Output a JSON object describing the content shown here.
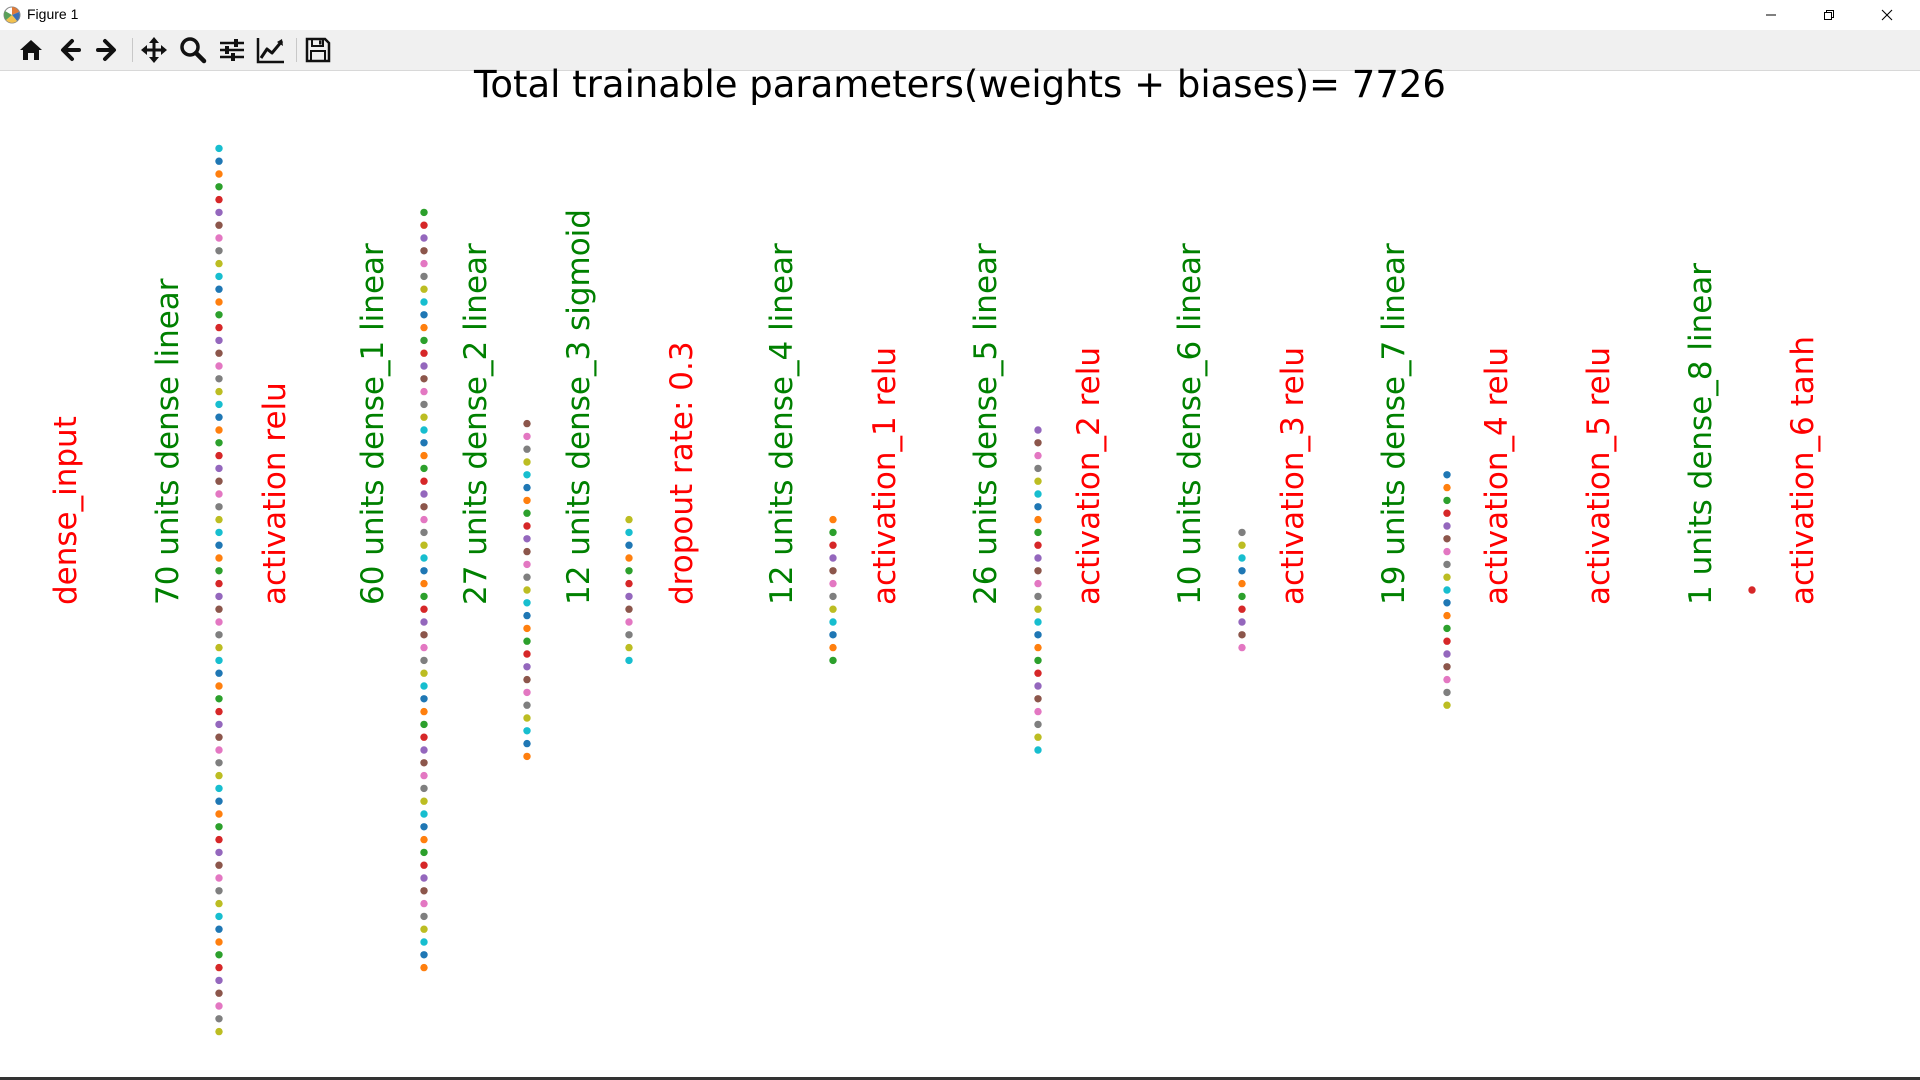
{
  "window": {
    "title": "Figure 1",
    "icon": "matplotlib-icon",
    "controls": [
      "minimize-icon",
      "restore-icon",
      "close-icon"
    ]
  },
  "toolbar": {
    "buttons": [
      {
        "name": "home-button",
        "icon": "home-icon",
        "tooltip": "Reset original view"
      },
      {
        "name": "back-button",
        "icon": "arrow-left-icon",
        "tooltip": "Back to previous view"
      },
      {
        "name": "forward-button",
        "icon": "arrow-right-icon",
        "tooltip": "Forward to next view"
      },
      {
        "name": "pan-button",
        "icon": "move-icon",
        "tooltip": "Pan axes"
      },
      {
        "name": "zoom-button",
        "icon": "magnifier-icon",
        "tooltip": "Zoom to rectangle"
      },
      {
        "name": "subplots-button",
        "icon": "sliders-icon",
        "tooltip": "Configure subplots"
      },
      {
        "name": "axes-button",
        "icon": "line-chart-icon",
        "tooltip": "Edit axis, curve and image parameters"
      },
      {
        "name": "save-button",
        "icon": "floppy-icon",
        "tooltip": "Save the figure"
      }
    ]
  },
  "figure": {
    "title": "Total trainable parameters(weights + biases)= 7726",
    "label_colors": {
      "dense": "#008000",
      "other": "#ff0000"
    },
    "node_palette": [
      "#1f77b4",
      "#ff7f0e",
      "#2ca02c",
      "#d62728",
      "#9467bd",
      "#8c564b",
      "#e377c2",
      "#7f7f7f",
      "#bcbd22",
      "#17becf"
    ],
    "labels": [
      {
        "text": "dense_input",
        "kind": "other"
      },
      {
        "text": "70 units  dense  linear",
        "kind": "dense"
      },
      {
        "text": "activation relu",
        "kind": "other"
      },
      {
        "text": "60 units  dense_1  linear",
        "kind": "dense"
      },
      {
        "text": "27 units  dense_2  linear",
        "kind": "dense"
      },
      {
        "text": "12 units  dense_3  sigmoid",
        "kind": "dense"
      },
      {
        "text": "dropout rate: 0.3",
        "kind": "other"
      },
      {
        "text": "12 units  dense_4  linear",
        "kind": "dense"
      },
      {
        "text": "activation_1 relu",
        "kind": "other"
      },
      {
        "text": "26 units  dense_5  linear",
        "kind": "dense"
      },
      {
        "text": "activation_2 relu",
        "kind": "other"
      },
      {
        "text": "10 units  dense_6  linear",
        "kind": "dense"
      },
      {
        "text": "activation_3 relu",
        "kind": "other"
      },
      {
        "text": "19 units  dense_7  linear",
        "kind": "dense"
      },
      {
        "text": "activation_4 relu",
        "kind": "other"
      },
      {
        "text": "activation_5 relu",
        "kind": "other"
      },
      {
        "text": "1 units  dense_8  linear",
        "kind": "dense"
      },
      {
        "text": "activation_6 tanh",
        "kind": "other"
      }
    ],
    "node_columns": [
      {
        "layer": "dense",
        "units": 70
      },
      {
        "layer": "dense_1",
        "units": 60
      },
      {
        "layer": "dense_2",
        "units": 27
      },
      {
        "layer": "dense_3",
        "units": 12
      },
      {
        "layer": "dense_4",
        "units": 12
      },
      {
        "layer": "dense_5",
        "units": 26
      },
      {
        "layer": "dense_6",
        "units": 10
      },
      {
        "layer": "dense_7",
        "units": 19
      },
      {
        "layer": "dense_8",
        "units": 1
      }
    ]
  }
}
